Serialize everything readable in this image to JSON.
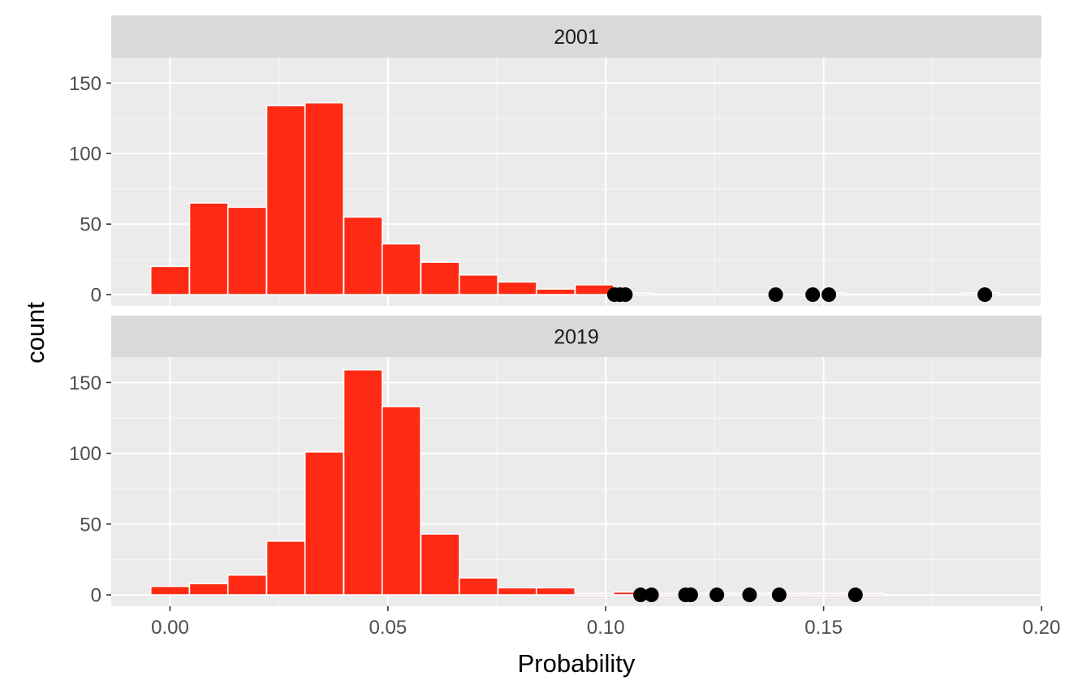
{
  "colors": {
    "panel_background": "#ebebeb",
    "strip_background": "#d9d9d9",
    "grid_major": "#ffffff",
    "grid_minor": "#f5f5f5",
    "bar_fill": "#ff2a14",
    "bar_outline": "#ffffff",
    "point_fill": "#000000"
  },
  "chart_data": {
    "type": "bar",
    "chart_kind": "faceted histogram with overlaid points",
    "xlabel": "Probability",
    "ylabel": "count",
    "xlim": [
      -0.0135,
      0.2
    ],
    "ylim": [
      -8,
      168
    ],
    "x_ticks": [
      0,
      0.05,
      0.1,
      0.15,
      0.2
    ],
    "x_tick_labels": [
      "0.00",
      "0.05",
      "0.10",
      "0.15",
      "0.20"
    ],
    "y_ticks": [
      0,
      50,
      100,
      150
    ],
    "y_tick_labels": [
      "0",
      "50",
      "100",
      "150"
    ],
    "bin_width": 0.00885,
    "grid": true,
    "legend": "none",
    "facets": [
      {
        "label": "2001",
        "bins": [
          {
            "x": 0.0,
            "count": 20
          },
          {
            "x": 0.0089,
            "count": 65
          },
          {
            "x": 0.0177,
            "count": 62
          },
          {
            "x": 0.0266,
            "count": 134
          },
          {
            "x": 0.0354,
            "count": 136
          },
          {
            "x": 0.0443,
            "count": 55
          },
          {
            "x": 0.0531,
            "count": 36
          },
          {
            "x": 0.062,
            "count": 23
          },
          {
            "x": 0.0708,
            "count": 14
          },
          {
            "x": 0.0797,
            "count": 9
          },
          {
            "x": 0.0885,
            "count": 4
          },
          {
            "x": 0.0974,
            "count": 7
          },
          {
            "x": 0.1062,
            "count": 1
          },
          {
            "x": 0.1151,
            "count": 0
          },
          {
            "x": 0.1239,
            "count": 0
          },
          {
            "x": 0.1328,
            "count": 0
          },
          {
            "x": 0.1416,
            "count": 0
          },
          {
            "x": 0.1505,
            "count": 1
          },
          {
            "x": 0.1593,
            "count": 0
          },
          {
            "x": 0.1682,
            "count": 0
          },
          {
            "x": 0.177,
            "count": 0
          },
          {
            "x": 0.1859,
            "count": 1
          }
        ],
        "points": [
          {
            "x": 0.102,
            "y": 0
          },
          {
            "x": 0.1032,
            "y": 0
          },
          {
            "x": 0.1045,
            "y": 0
          },
          {
            "x": 0.139,
            "y": 0
          },
          {
            "x": 0.1475,
            "y": 0
          },
          {
            "x": 0.1512,
            "y": 0
          },
          {
            "x": 0.187,
            "y": 0
          }
        ]
      },
      {
        "label": "2019",
        "bins": [
          {
            "x": 0.0,
            "count": 6
          },
          {
            "x": 0.0089,
            "count": 8
          },
          {
            "x": 0.0177,
            "count": 14
          },
          {
            "x": 0.0266,
            "count": 38
          },
          {
            "x": 0.0354,
            "count": 101
          },
          {
            "x": 0.0443,
            "count": 159
          },
          {
            "x": 0.0531,
            "count": 133
          },
          {
            "x": 0.062,
            "count": 43
          },
          {
            "x": 0.0708,
            "count": 12
          },
          {
            "x": 0.0797,
            "count": 5
          },
          {
            "x": 0.0885,
            "count": 5
          },
          {
            "x": 0.0974,
            "count": 1
          },
          {
            "x": 0.1062,
            "count": 2
          },
          {
            "x": 0.1151,
            "count": 1
          },
          {
            "x": 0.1239,
            "count": 1
          },
          {
            "x": 0.1328,
            "count": 1
          },
          {
            "x": 0.1416,
            "count": 1
          },
          {
            "x": 0.1505,
            "count": 1
          },
          {
            "x": 0.1593,
            "count": 1
          }
        ],
        "points": [
          {
            "x": 0.108,
            "y": 0
          },
          {
            "x": 0.1105,
            "y": 0
          },
          {
            "x": 0.1183,
            "y": 0
          },
          {
            "x": 0.1195,
            "y": 0
          },
          {
            "x": 0.1255,
            "y": 0
          },
          {
            "x": 0.133,
            "y": 0
          },
          {
            "x": 0.1398,
            "y": 0
          },
          {
            "x": 0.1573,
            "y": 0
          }
        ]
      }
    ]
  }
}
